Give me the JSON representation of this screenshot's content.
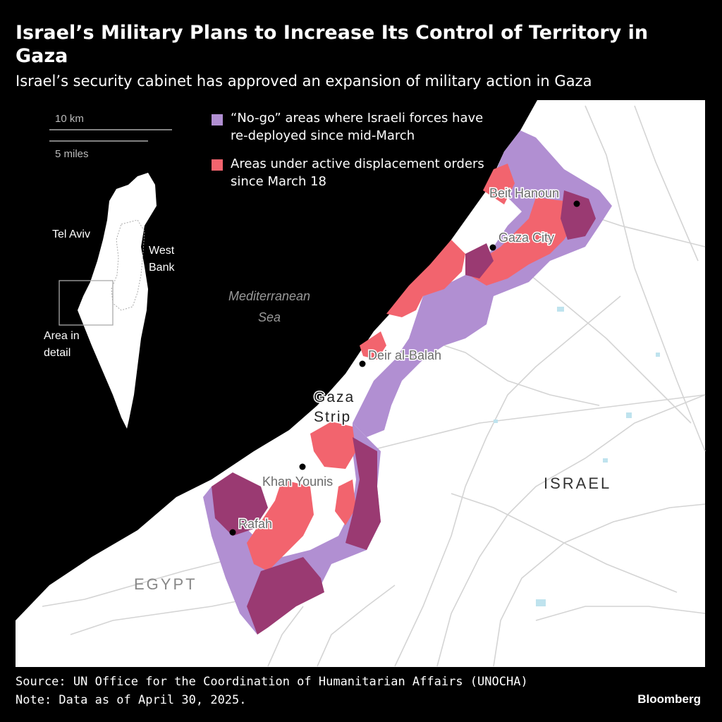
{
  "title": "Israel’s Military Plans to Increase Its Control of Territory in Gaza",
  "subtitle": "Israel’s security cabinet has approved an expansion of military action in Gaza",
  "legend": {
    "items": [
      {
        "label": "“No-go” areas where Israeli forces have re-deployed since mid-March",
        "color": "#b18fd2"
      },
      {
        "label": "Areas under active displacement orders since March 18",
        "color": "#f2646e"
      }
    ]
  },
  "scale": {
    "km": "10 km",
    "miles": "5 miles"
  },
  "inset": {
    "labels": {
      "tel_aviv": "Tel Aviv",
      "west_bank": "West Bank",
      "area_in_detail": "Area in detail"
    }
  },
  "map": {
    "sea_label": "Mediterranean Sea",
    "region_labels": {
      "gaza_strip": "Gaza Strip",
      "israel": "ISRAEL",
      "egypt": "EGYPT"
    },
    "cities": [
      {
        "name": "Beit Hanoun"
      },
      {
        "name": "Gaza City"
      },
      {
        "name": "Deir al-Balah"
      },
      {
        "name": "Khan Younis"
      },
      {
        "name": "Rafah"
      }
    ]
  },
  "colors": {
    "background": "#000000",
    "land": "#ffffff",
    "no_go": "#b18fd2",
    "displacement": "#f2646e",
    "overlap": "#9a3a72",
    "roads": "#cfcfcf",
    "water": "#bfe3ee"
  },
  "source": "Source: UN Office for the Coordination of Humanitarian Affairs (UNOCHA)",
  "note": "Note: Data as of April 30, 2025.",
  "brand": "Bloomberg"
}
